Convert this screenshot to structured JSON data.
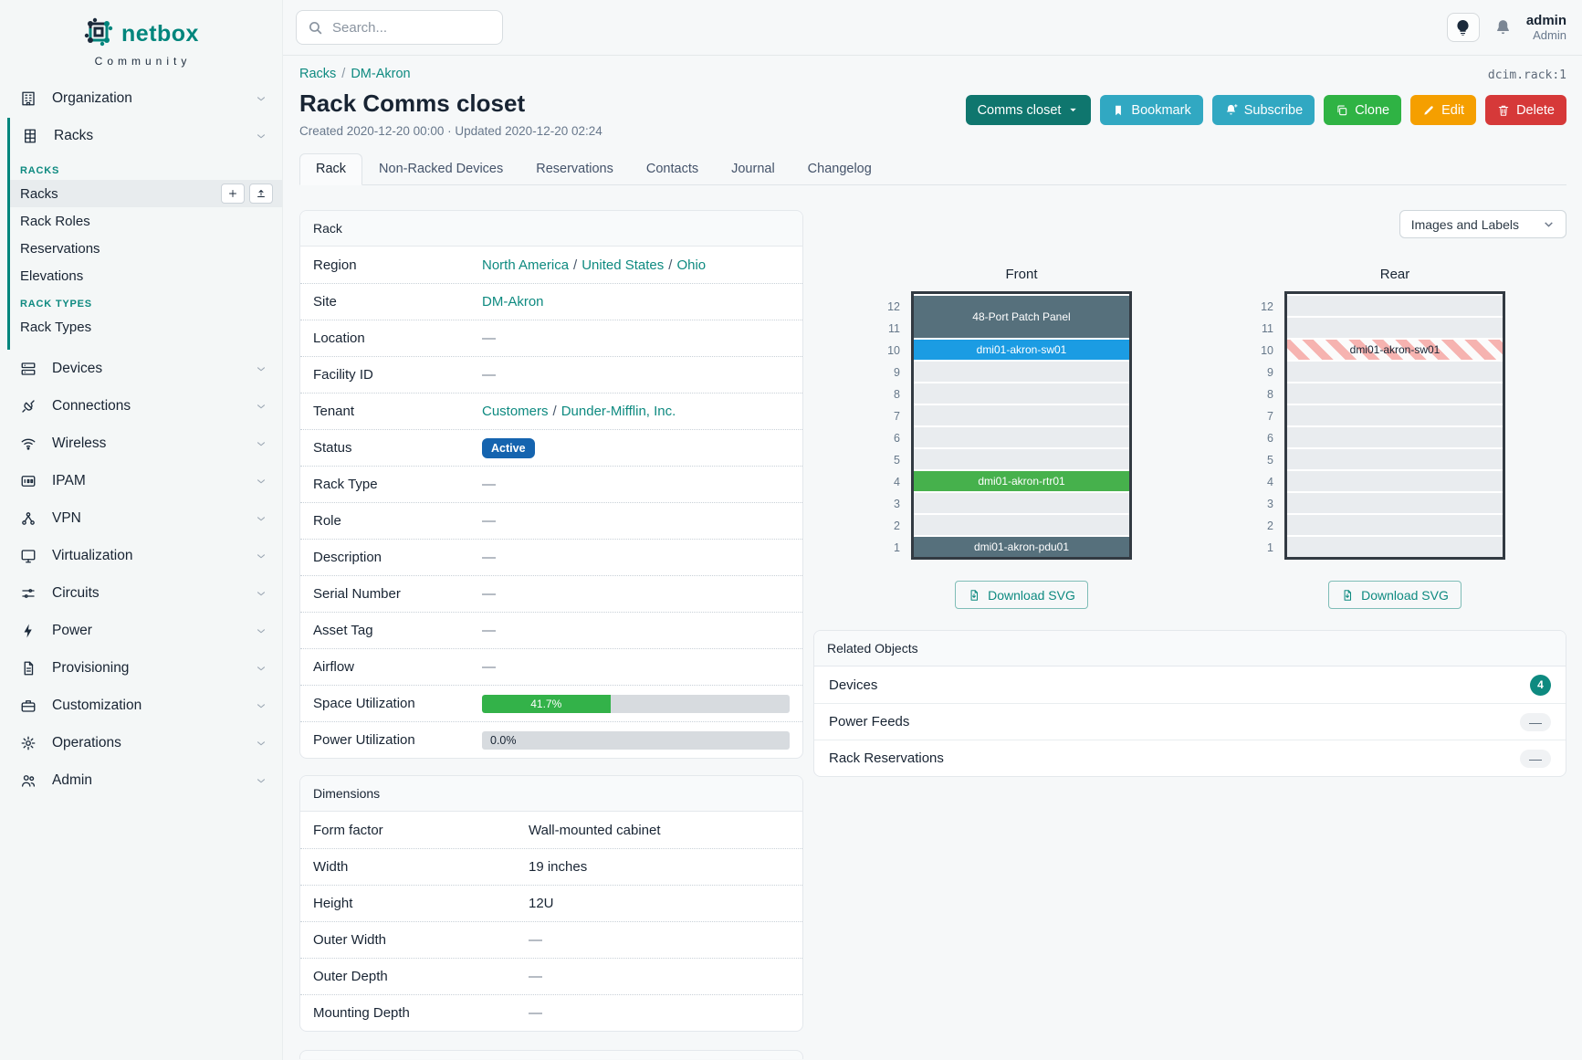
{
  "meta": {
    "object_id": "dcim.rack:1"
  },
  "colors": {
    "accent_teal": "#0e8a80",
    "badge_active_blue": "#1564af",
    "utilization_green": "#33b249",
    "device_slate": "#56707c",
    "device_blue": "#1b9ce3",
    "device_green": "#46b14c",
    "stripe_red": "#f6b3b0"
  },
  "sidebar": {
    "logo": {
      "brand": "netbox",
      "subtitle": "Community"
    },
    "groups": [
      {
        "label": "Organization",
        "icon": "building-icon",
        "expanded": false
      },
      {
        "label": "Racks",
        "icon": "rack-icon",
        "expanded": true,
        "sections": [
          {
            "header": "RACKS",
            "items": [
              {
                "label": "Racks",
                "active": true,
                "actions": [
                  {
                    "icon": "plus-icon"
                  },
                  {
                    "icon": "import-icon"
                  }
                ]
              },
              {
                "label": "Rack Roles"
              },
              {
                "label": "Reservations"
              },
              {
                "label": "Elevations"
              }
            ]
          },
          {
            "header": "RACK TYPES",
            "items": [
              {
                "label": "Rack Types"
              }
            ]
          }
        ]
      },
      {
        "label": "Devices",
        "icon": "devices-icon",
        "expanded": false
      },
      {
        "label": "Connections",
        "icon": "plug-icon",
        "expanded": false
      },
      {
        "label": "Wireless",
        "icon": "wifi-icon",
        "expanded": false
      },
      {
        "label": "IPAM",
        "icon": "ipam-icon",
        "expanded": false
      },
      {
        "label": "VPN",
        "icon": "vpn-icon",
        "expanded": false
      },
      {
        "label": "Virtualization",
        "icon": "monitor-icon",
        "expanded": false
      },
      {
        "label": "Circuits",
        "icon": "circuits-icon",
        "expanded": false
      },
      {
        "label": "Power",
        "icon": "bolt-icon",
        "expanded": false
      },
      {
        "label": "Provisioning",
        "icon": "document-icon",
        "expanded": false
      },
      {
        "label": "Customization",
        "icon": "briefcase-icon",
        "expanded": false
      },
      {
        "label": "Operations",
        "icon": "operations-icon",
        "expanded": false
      },
      {
        "label": "Admin",
        "icon": "users-icon",
        "expanded": false
      }
    ]
  },
  "topbar": {
    "search_placeholder": "Search...",
    "user": {
      "name": "admin",
      "role": "Admin"
    }
  },
  "page": {
    "breadcrumb": [
      "Racks",
      "DM-Akron"
    ],
    "title": "Rack Comms closet",
    "subtitle": "Created 2020-12-20 00:00 · Updated 2020-12-20 02:24",
    "actions": [
      {
        "label": "Comms closet",
        "color": "#0f766e",
        "icon": "caret-down-icon",
        "icon_after": true,
        "name": "rack-view-dropdown"
      },
      {
        "label": "Bookmark",
        "color": "#31a8c2",
        "icon": "bookmark-icon",
        "name": "bookmark-button"
      },
      {
        "label": "Subscribe",
        "color": "#31a8c2",
        "icon": "bell-plus-icon",
        "name": "subscribe-button"
      },
      {
        "label": "Clone",
        "color": "#2fb344",
        "icon": "copy-icon",
        "name": "clone-button"
      },
      {
        "label": "Edit",
        "color": "#f59f00",
        "icon": "pencil-icon",
        "name": "edit-button"
      },
      {
        "label": "Delete",
        "color": "#d63939",
        "icon": "trash-icon",
        "name": "delete-button"
      }
    ],
    "tabs": [
      "Rack",
      "Non-Racked Devices",
      "Reservations",
      "Contacts",
      "Journal",
      "Changelog"
    ],
    "active_tab": 0
  },
  "rack_panel": {
    "title": "Rack",
    "rows": [
      {
        "label": "Region",
        "type": "links",
        "values": [
          "North America",
          "United States",
          "Ohio"
        ]
      },
      {
        "label": "Site",
        "type": "links",
        "values": [
          "DM-Akron"
        ]
      },
      {
        "label": "Location",
        "type": "dash"
      },
      {
        "label": "Facility ID",
        "type": "dash"
      },
      {
        "label": "Tenant",
        "type": "links",
        "values": [
          "Customers",
          "Dunder-Mifflin, Inc."
        ]
      },
      {
        "label": "Status",
        "type": "badge",
        "value": "Active"
      },
      {
        "label": "Rack Type",
        "type": "dash"
      },
      {
        "label": "Role",
        "type": "dash"
      },
      {
        "label": "Description",
        "type": "dash"
      },
      {
        "label": "Serial Number",
        "type": "dash"
      },
      {
        "label": "Asset Tag",
        "type": "dash"
      },
      {
        "label": "Airflow",
        "type": "dash"
      },
      {
        "label": "Space Utilization",
        "type": "progress",
        "percent": 41.7,
        "display": "41.7%"
      },
      {
        "label": "Power Utilization",
        "type": "progress",
        "percent": 0,
        "display": "0.0%"
      }
    ]
  },
  "dimensions_panel": {
    "title": "Dimensions",
    "rows": [
      {
        "label": "Form factor",
        "type": "text",
        "value": "Wall-mounted cabinet"
      },
      {
        "label": "Width",
        "type": "text",
        "value": "19 inches"
      },
      {
        "label": "Height",
        "type": "text",
        "value": "12U"
      },
      {
        "label": "Outer Width",
        "type": "dash"
      },
      {
        "label": "Outer Depth",
        "type": "dash"
      },
      {
        "label": "Mounting Depth",
        "type": "dash"
      }
    ]
  },
  "elevations": {
    "select_label": "Images and Labels",
    "download_label": "Download SVG",
    "units": 12,
    "front": {
      "title": "Front",
      "devices": [
        {
          "name": "48-Port Patch Panel",
          "u": 11,
          "height": 2,
          "color": "slate"
        },
        {
          "name": "dmi01-akron-sw01",
          "u": 10,
          "height": 1,
          "color": "blue"
        },
        {
          "name": "dmi01-akron-rtr01",
          "u": 4,
          "height": 1,
          "color": "green"
        },
        {
          "name": "dmi01-akron-pdu01",
          "u": 1,
          "height": 1,
          "color": "slate"
        }
      ]
    },
    "rear": {
      "title": "Rear",
      "devices": [
        {
          "name": "dmi01-akron-sw01",
          "u": 10,
          "height": 1,
          "color": "striped"
        }
      ]
    }
  },
  "related_objects": {
    "title": "Related Objects",
    "rows": [
      {
        "label": "Devices",
        "count": "4"
      },
      {
        "label": "Power Feeds",
        "count": null
      },
      {
        "label": "Rack Reservations",
        "count": null
      }
    ]
  }
}
